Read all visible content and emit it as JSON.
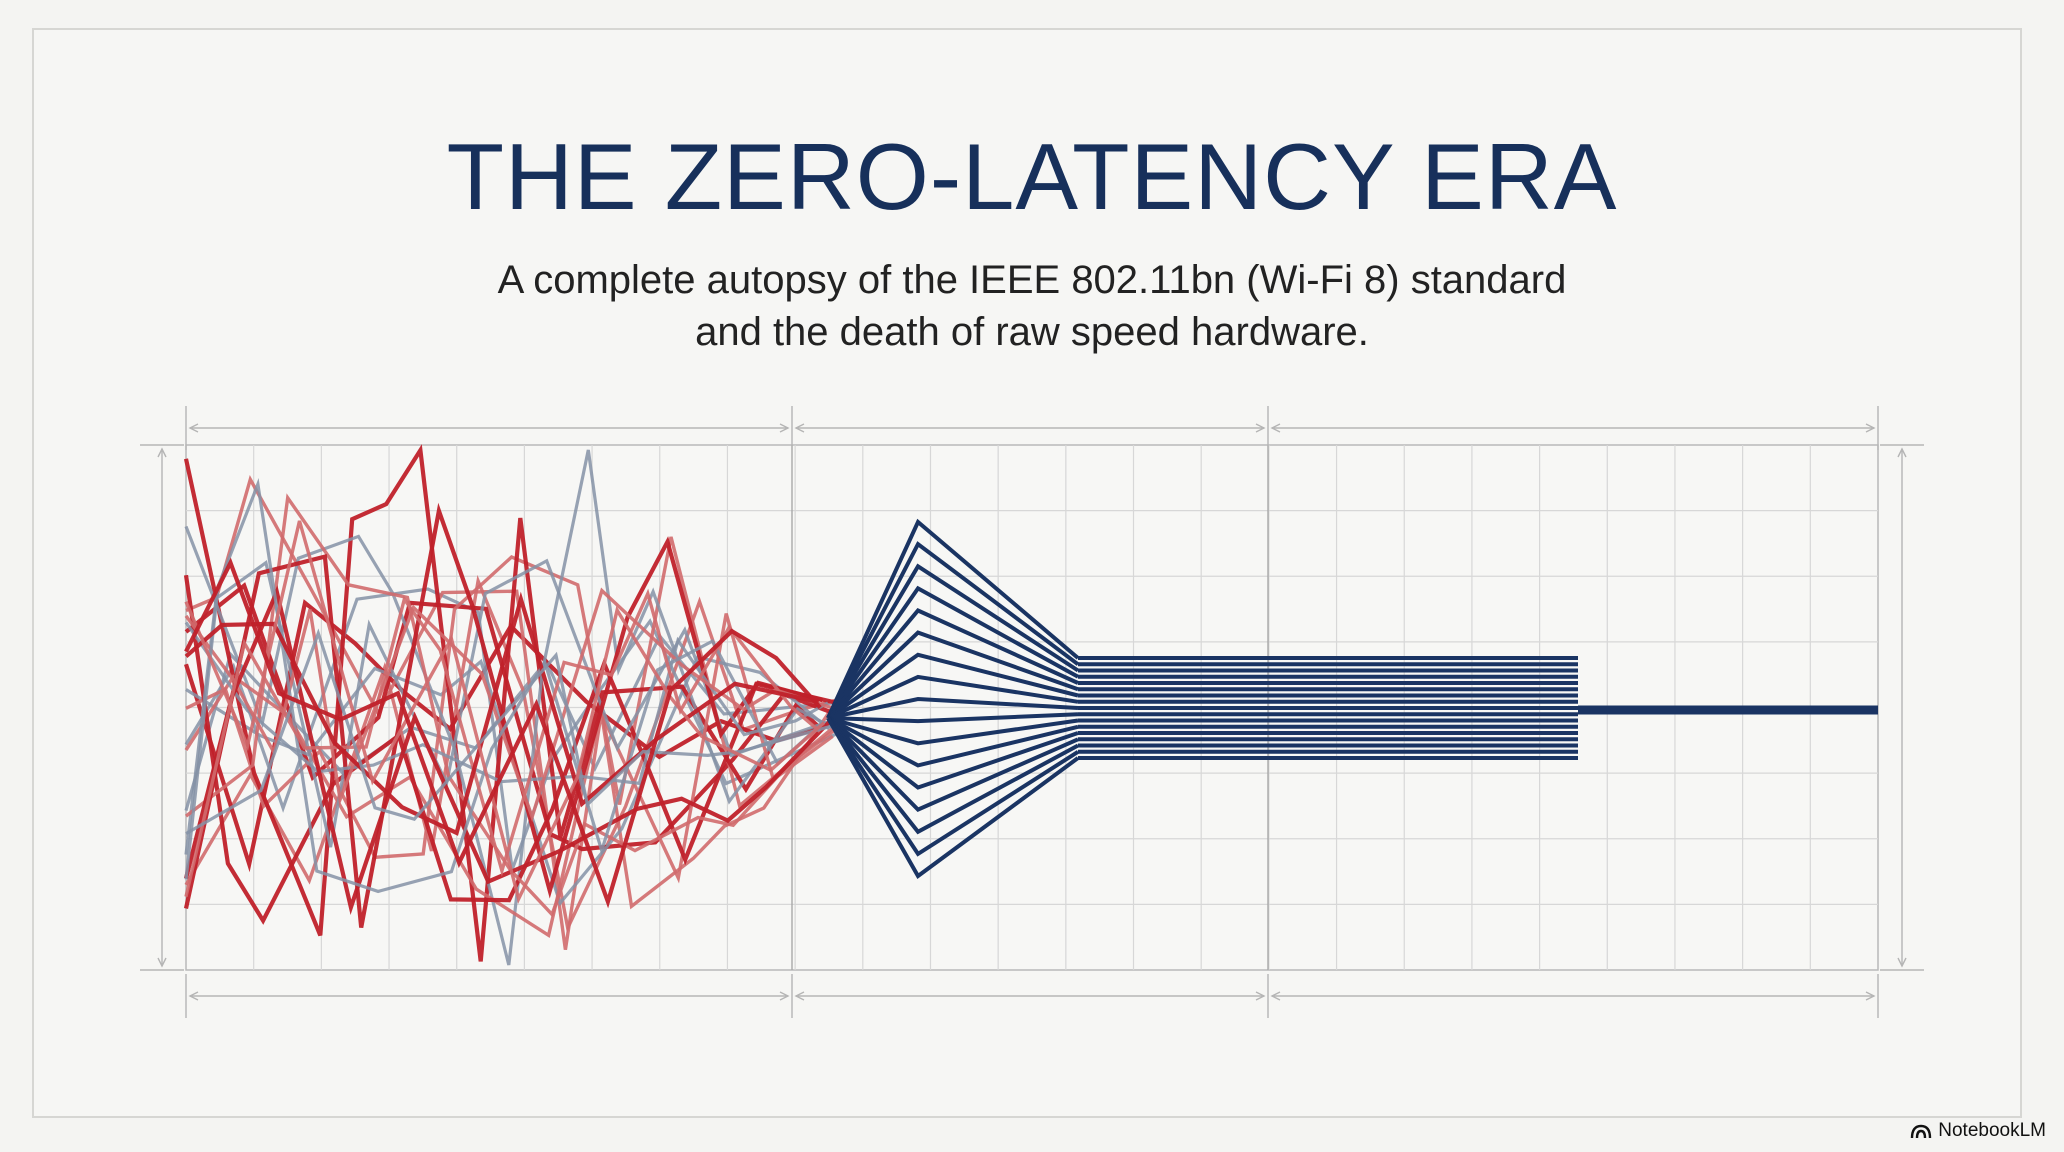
{
  "title": "THE ZERO-LATENCY ERA",
  "subtitle": {
    "line1": "A complete autopsy of the IEEE 802.11bn (Wi-Fi 8) standard",
    "line2": "and the death of raw speed hardware."
  },
  "brand": {
    "label": "NotebookLM",
    "icon": "notebooklm-logo-icon"
  },
  "colors": {
    "title": "#17305b",
    "navy": "#1a3463",
    "red": "#c0212a",
    "red_light": "#d06a6d",
    "gray": "#8592a6",
    "grid": "#d7d7d7"
  }
}
